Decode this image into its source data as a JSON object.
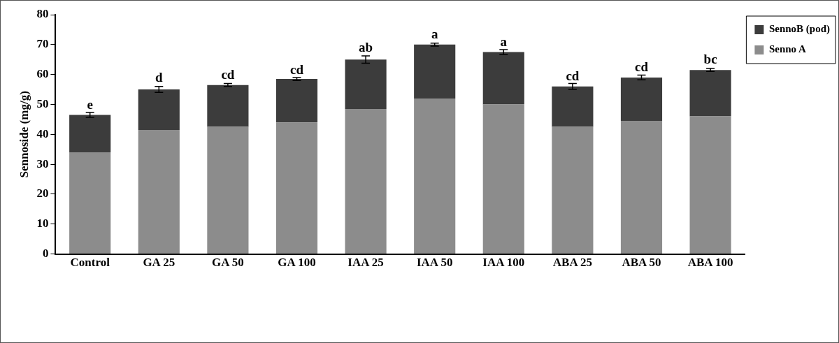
{
  "chart_data": {
    "type": "bar",
    "stacked": true,
    "ylabel": "Sennoside (mg/g)",
    "categories": [
      "Control",
      "GA 25",
      "GA 50",
      "GA 100",
      "IAA 25",
      "IAA 50",
      "IAA 100",
      "ABA 25",
      "ABA 50",
      "ABA 100"
    ],
    "series": [
      {
        "name": "Senno A",
        "color": "#8c8c8c",
        "values": [
          34,
          41.5,
          42.5,
          44,
          48.5,
          52,
          50,
          42.5,
          44.5,
          46
        ]
      },
      {
        "name": "SennoB (pod)",
        "color": "#3c3c3c",
        "values": [
          12.5,
          13.5,
          14,
          14.5,
          16.5,
          18,
          17.5,
          13.5,
          14.5,
          15.5
        ],
        "errors": [
          0.8,
          1,
          0.5,
          0.5,
          1.2,
          0.5,
          0.8,
          1,
          0.8,
          0.5
        ]
      }
    ],
    "ylim": [
      0,
      80
    ],
    "yticks": [
      0,
      10,
      20,
      30,
      40,
      50,
      60,
      70,
      80
    ],
    "grid": false,
    "legend": "top right",
    "annotations": [
      {
        "text": "e",
        "x": "Control",
        "y": 47.5
      },
      {
        "text": "d",
        "x": "GA 25",
        "y": 56.5
      },
      {
        "text": "cd",
        "x": "GA 50",
        "y": 57.5
      },
      {
        "text": "cd",
        "x": "GA 100",
        "y": 59
      },
      {
        "text": "ab",
        "x": "IAA 25",
        "y": 66.5
      },
      {
        "text": "a",
        "x": "IAA 50",
        "y": 71
      },
      {
        "text": "a",
        "x": "IAA 100",
        "y": 68.5
      },
      {
        "text": "cd",
        "x": "ABA 25",
        "y": 57
      },
      {
        "text": "cd",
        "x": "ABA 50",
        "y": 60
      },
      {
        "text": "bc",
        "x": "ABA 100",
        "y": 62.5
      }
    ]
  }
}
